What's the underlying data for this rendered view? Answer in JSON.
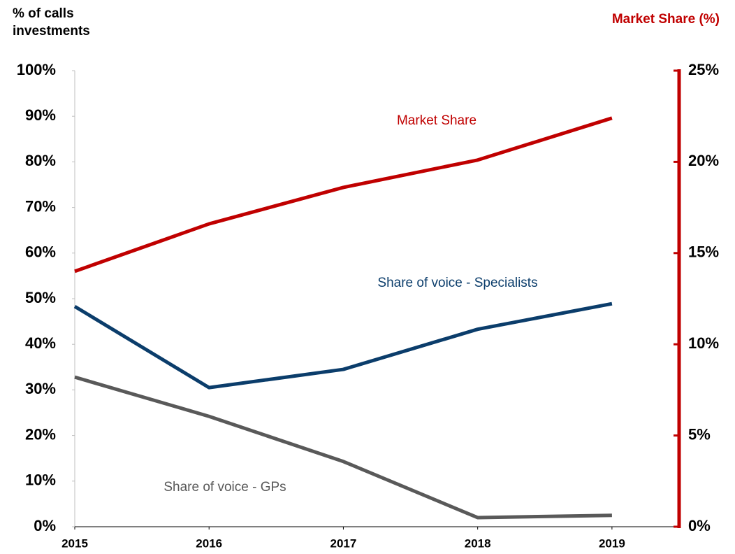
{
  "chart_data": {
    "type": "line",
    "ylabel": [
      "% of calls",
      "investments"
    ],
    "y2label": "Market Share (%)",
    "x": [
      2015,
      2016,
      2017,
      2018,
      2019
    ],
    "xlim": [
      2015,
      2019.5
    ],
    "xticks": [
      2015,
      2016,
      2017,
      2018,
      2019
    ],
    "ylim": [
      0,
      100
    ],
    "yticks": [
      {
        "value": 0,
        "label": "0%"
      },
      {
        "value": 10,
        "label": "10%"
      },
      {
        "value": 20,
        "label": "20%"
      },
      {
        "value": 30,
        "label": "30%"
      },
      {
        "value": 40,
        "label": "40%"
      },
      {
        "value": 50,
        "label": "50%"
      },
      {
        "value": 60,
        "label": "60%"
      },
      {
        "value": 70,
        "label": "70%"
      },
      {
        "value": 80,
        "label": "80%"
      },
      {
        "value": 90,
        "label": "90%"
      },
      {
        "value": 100,
        "label": "100%"
      }
    ],
    "y2lim": [
      0,
      25
    ],
    "y2ticks": [
      {
        "value": 0,
        "label": "0%"
      },
      {
        "value": 5,
        "label": "5%"
      },
      {
        "value": 10,
        "label": "10%"
      },
      {
        "value": 15,
        "label": "15%"
      },
      {
        "value": 20,
        "label": "20%"
      },
      {
        "value": 25,
        "label": "25%"
      }
    ],
    "y2color": "#c00000",
    "series": [
      {
        "name": "Market Share",
        "color": "#c00000",
        "axis": "y2",
        "values": [
          14.0,
          16.6,
          18.6,
          20.1,
          22.4
        ]
      },
      {
        "name": "Share of voice - Specialists",
        "color": "#0b3d6b",
        "values": [
          48.3,
          30.5,
          34.5,
          43.3,
          48.9
        ]
      },
      {
        "name": "Share of voice - GPs",
        "color": "#595959",
        "values": [
          32.8,
          24.2,
          14.3,
          2.0,
          2.5
        ]
      }
    ]
  }
}
